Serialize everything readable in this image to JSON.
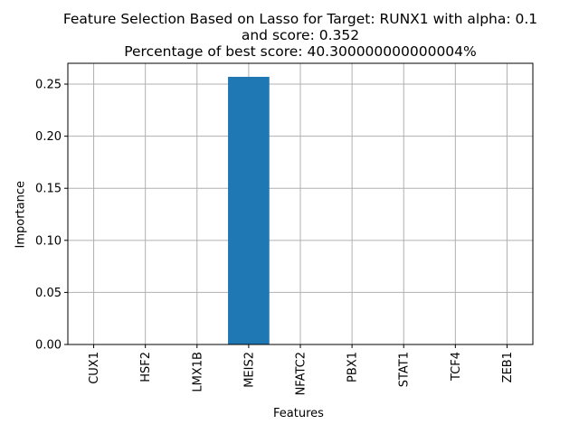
{
  "chart_data": {
    "type": "bar",
    "title_lines": [
      "Feature Selection Based on Lasso for Target: RUNX1 with alpha: 0.1",
      "and score: 0.352",
      "Percentage of best score: 40.300000000000004%"
    ],
    "xlabel": "Features",
    "ylabel": "Importance",
    "categories": [
      "CUX1",
      "HSF2",
      "LMX1B",
      "MEIS2",
      "NFATC2",
      "PBX1",
      "STAT1",
      "TCF4",
      "ZEB1"
    ],
    "values": [
      0,
      0,
      0,
      0.257,
      0,
      0,
      0,
      0,
      0
    ],
    "ylim": [
      0,
      0.27
    ],
    "yticks": [
      "0.00",
      "0.05",
      "0.10",
      "0.15",
      "0.20",
      "0.25"
    ],
    "grid": true,
    "colors": {
      "bar": "#1f77b4",
      "grid": "#b0b0b0",
      "axes": "#000000"
    }
  }
}
